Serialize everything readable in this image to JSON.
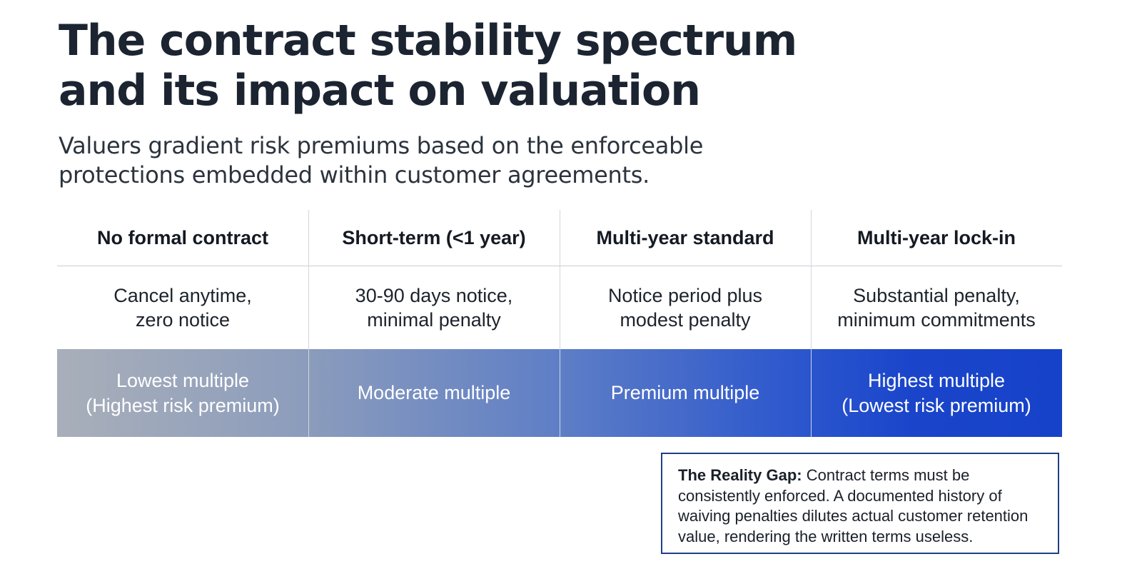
{
  "title": {
    "line1": "The contract stability spectrum",
    "line2": "and its impact on valuation"
  },
  "subtitle": {
    "line1": "Valuers gradient risk premiums based on the enforceable",
    "line2": "protections embedded within customer agreements."
  },
  "spectrum": {
    "gradient": {
      "from": "#a9afba",
      "to": "#1642c9"
    },
    "columns": [
      {
        "header": "No formal contract",
        "terms": [
          "Cancel anytime,",
          "zero notice"
        ],
        "outcome": [
          "Lowest multiple",
          "(Highest risk premium)"
        ]
      },
      {
        "header": "Short-term (<1 year)",
        "terms": [
          "30-90 days notice,",
          "minimal penalty"
        ],
        "outcome": [
          "Moderate multiple"
        ]
      },
      {
        "header": "Multi-year standard",
        "terms": [
          "Notice period plus",
          "modest penalty"
        ],
        "outcome": [
          "Premium multiple"
        ]
      },
      {
        "header": "Multi-year lock-in",
        "terms": [
          "Substantial penalty,",
          "minimum commitments"
        ],
        "outcome": [
          "Highest multiple",
          "(Lowest risk premium)"
        ]
      }
    ]
  },
  "callout": {
    "lead": "The Reality Gap:",
    "line1_rest": " Contract terms must be",
    "line2": "consistently enforced. A documented history of",
    "line3": "waiving penalties dilutes actual customer retention",
    "line4": "value, rendering the written terms useless.",
    "border_color": "#1f3f86"
  }
}
